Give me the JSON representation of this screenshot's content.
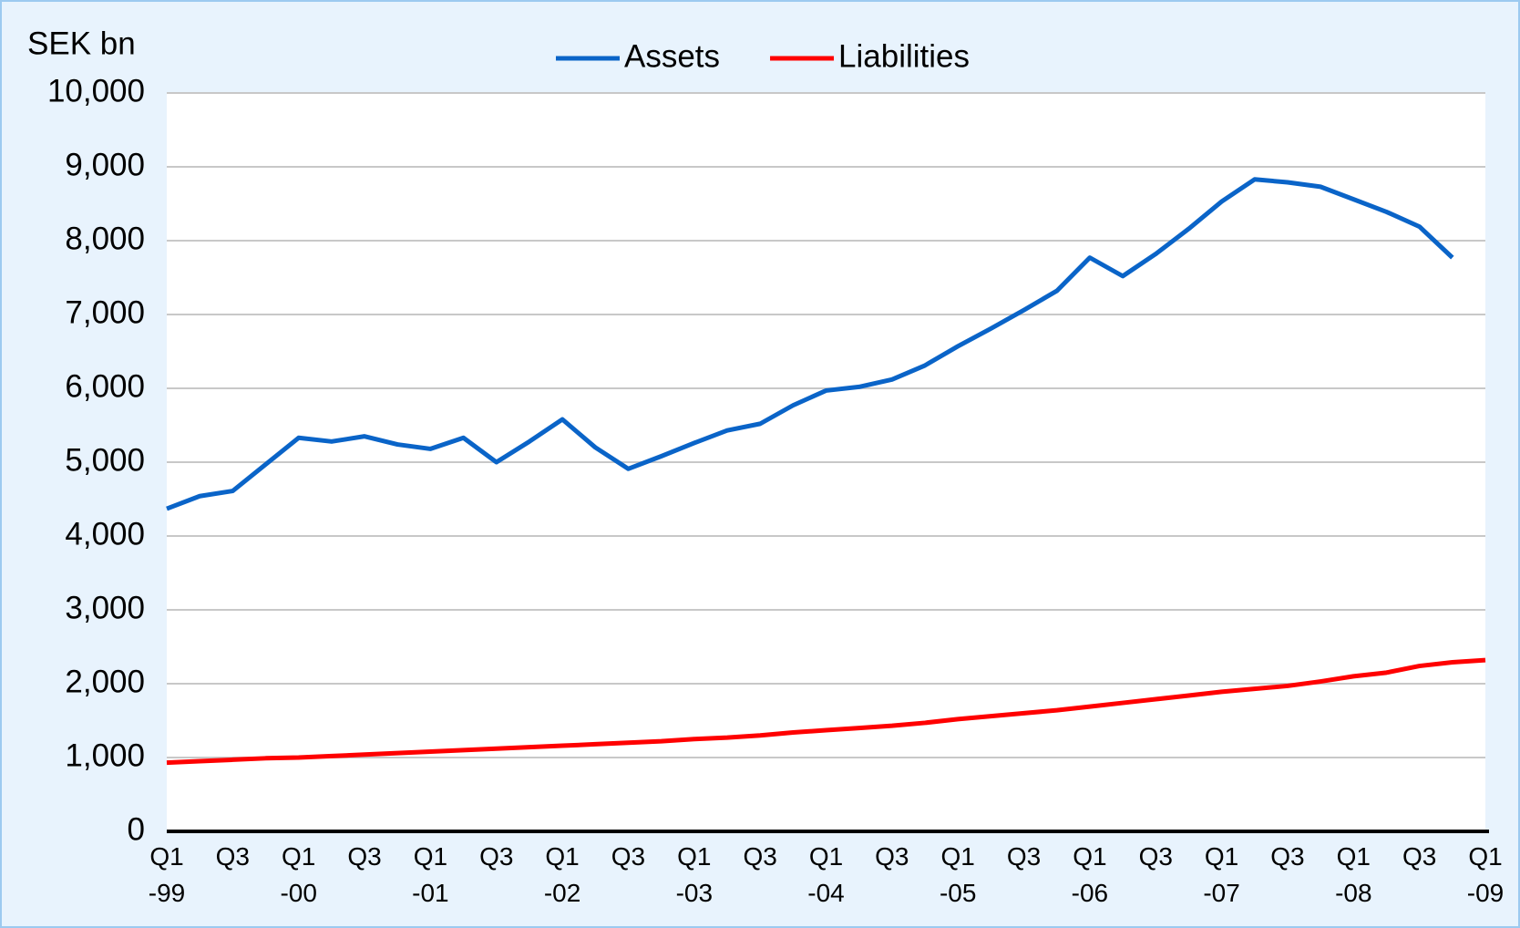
{
  "chart_data": {
    "type": "line",
    "y_axis_label": "SEK bn",
    "categories": [
      "Q1\n-99",
      null,
      "Q3",
      null,
      "Q1\n-00",
      null,
      "Q3",
      null,
      "Q1\n-01",
      null,
      "Q3",
      null,
      "Q1\n-02",
      null,
      "Q3",
      null,
      "Q1\n-03",
      null,
      "Q3",
      null,
      "Q1\n-04",
      null,
      "Q3",
      null,
      "Q1\n-05",
      null,
      "Q3",
      null,
      "Q1\n-06",
      null,
      "Q3",
      null,
      "Q1\n-07",
      null,
      "Q3",
      null,
      "Q1\n-08",
      null,
      "Q3",
      null,
      "Q1\n-09"
    ],
    "series": [
      {
        "name": "Assets",
        "color": "#0a64c8",
        "values": [
          4370,
          4540,
          4610,
          4970,
          5330,
          5280,
          5350,
          5240,
          5180,
          5330,
          5000,
          5280,
          5580,
          5200,
          4910,
          5080,
          5260,
          5430,
          5520,
          5770,
          5970,
          6020,
          6120,
          6310,
          6570,
          6810,
          7060,
          7320,
          7770,
          7520,
          7820,
          8160,
          8530,
          8830,
          8790,
          8730,
          8560,
          8390,
          8190,
          7770,
          null
        ]
      },
      {
        "name": "Liabilities",
        "color": "#ff0000",
        "values": [
          930,
          950,
          970,
          990,
          1000,
          1020,
          1040,
          1060,
          1080,
          1100,
          1120,
          1140,
          1160,
          1180,
          1200,
          1220,
          1250,
          1270,
          1300,
          1340,
          1370,
          1400,
          1430,
          1470,
          1520,
          1560,
          1600,
          1640,
          1690,
          1740,
          1790,
          1840,
          1890,
          1930,
          1970,
          2030,
          2100,
          2150,
          2240,
          2290,
          2320
        ]
      }
    ],
    "ylim": [
      0,
      10000
    ],
    "yticks": [
      0,
      {
        "value": 1000,
        "label": "1,000"
      },
      {
        "value": 2000,
        "label": "2,000"
      },
      {
        "value": 3000,
        "label": "3,000"
      },
      {
        "value": 4000,
        "label": "4,000"
      },
      {
        "value": 5000,
        "label": "5,000"
      },
      {
        "value": 6000,
        "label": "6,000"
      },
      {
        "value": 7000,
        "label": "7,000"
      },
      {
        "value": 8000,
        "label": "8,000"
      },
      {
        "value": 9000,
        "label": "9,000"
      },
      {
        "value": 10000,
        "label": "10,000"
      }
    ],
    "grid": true,
    "legend": "top"
  }
}
